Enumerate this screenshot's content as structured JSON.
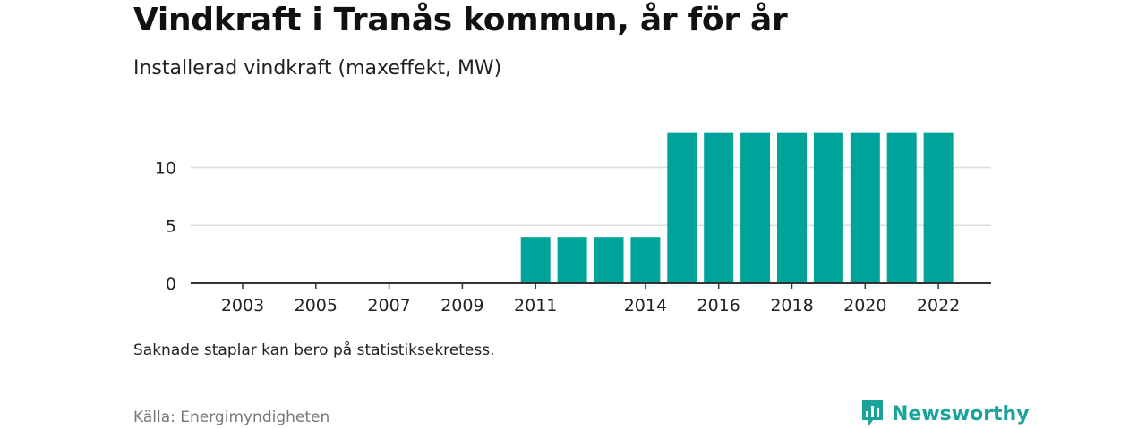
{
  "header": {
    "title": "Vindkraft i Tranås kommun, år för år",
    "subtitle": "Installerad vindkraft (maxeffekt, MW)"
  },
  "chart_data": {
    "type": "bar",
    "categories": [
      "2003",
      "2004",
      "2005",
      "2006",
      "2007",
      "2008",
      "2009",
      "2010",
      "2011",
      "2012",
      "2013",
      "2014",
      "2015",
      "2016",
      "2017",
      "2018",
      "2019",
      "2020",
      "2021",
      "2022"
    ],
    "values": [
      null,
      null,
      null,
      null,
      null,
      null,
      null,
      null,
      4,
      4,
      4,
      4,
      13,
      13,
      13,
      13,
      13,
      13,
      13,
      13
    ],
    "x_tick_labels": [
      "2003",
      "2005",
      "2007",
      "2009",
      "2011",
      "",
      "2014",
      "2016",
      "2018",
      "2020",
      "2022"
    ],
    "x_tick_years": [
      "2003",
      "2005",
      "2007",
      "2009",
      "2011",
      "2014",
      "2016",
      "2018",
      "2020",
      "2022"
    ],
    "y_ticks": [
      0,
      5,
      10
    ],
    "ylim": [
      0,
      13
    ],
    "bar_color": "#00a39a",
    "grid": true,
    "xlabel": "",
    "ylabel": ""
  },
  "footer": {
    "note": "Saknade staplar kan bero på statistiksekretess.",
    "source": "Källa: Energimyndigheten",
    "brand": "Newsworthy",
    "brand_icon": "bar-chart-logo-icon",
    "brand_color": "#1aa39a"
  }
}
